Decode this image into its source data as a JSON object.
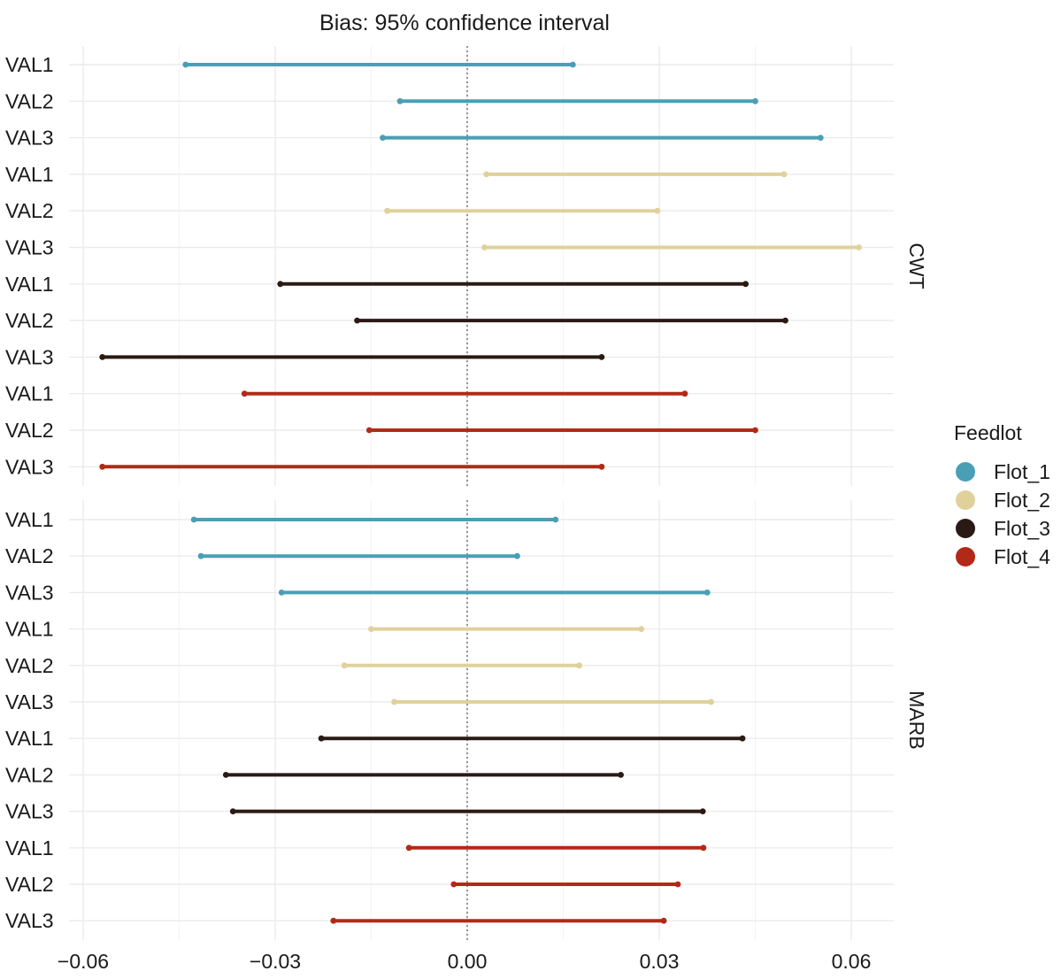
{
  "chart_data": {
    "type": "dumbbell",
    "title": "Bias: 95% confidence interval",
    "xlabel": "",
    "ylabel": "",
    "xlim": [
      -0.062,
      0.066
    ],
    "x_ticks": [
      -0.06,
      -0.03,
      0.0,
      0.03,
      0.06
    ],
    "x_tick_labels": [
      "−0.06",
      "−0.03",
      "0.00",
      "0.03",
      "0.06"
    ],
    "reference_line": 0,
    "grid": true,
    "legend": {
      "title": "Feedlot",
      "placement": "right",
      "entries": [
        {
          "name": "Flot_1",
          "color": "#4a9fb5"
        },
        {
          "name": "Flot_2",
          "color": "#e0d19b"
        },
        {
          "name": "Flot_3",
          "color": "#2b1a14"
        },
        {
          "name": "Flot_4",
          "color": "#b22a17"
        }
      ]
    },
    "panels": [
      {
        "strip": "CWT",
        "rows": [
          {
            "label": "VAL1",
            "group": "Flot_1",
            "low": -0.044,
            "high": 0.0165
          },
          {
            "label": "VAL2",
            "group": "Flot_1",
            "low": -0.0105,
            "high": 0.045
          },
          {
            "label": "VAL3",
            "group": "Flot_1",
            "low": -0.0132,
            "high": 0.0552
          },
          {
            "label": "VAL1",
            "group": "Flot_2",
            "low": 0.003,
            "high": 0.0495
          },
          {
            "label": "VAL2",
            "group": "Flot_2",
            "low": -0.0125,
            "high": 0.0297
          },
          {
            "label": "VAL3",
            "group": "Flot_2",
            "low": 0.0027,
            "high": 0.0612
          },
          {
            "label": "VAL1",
            "group": "Flot_3",
            "low": -0.0292,
            "high": 0.0435
          },
          {
            "label": "VAL2",
            "group": "Flot_3",
            "low": -0.0172,
            "high": 0.0497
          },
          {
            "label": "VAL3",
            "group": "Flot_3",
            "low": -0.057,
            "high": 0.021
          },
          {
            "label": "VAL1",
            "group": "Flot_4",
            "low": -0.0348,
            "high": 0.034
          },
          {
            "label": "VAL2",
            "group": "Flot_4",
            "low": -0.0153,
            "high": 0.045
          },
          {
            "label": "VAL3",
            "group": "Flot_4",
            "low": -0.057,
            "high": 0.021
          }
        ]
      },
      {
        "strip": "MARB",
        "rows": [
          {
            "label": "VAL1",
            "group": "Flot_1",
            "low": -0.0427,
            "high": 0.0138
          },
          {
            "label": "VAL2",
            "group": "Flot_1",
            "low": -0.0416,
            "high": 0.0078
          },
          {
            "label": "VAL3",
            "group": "Flot_1",
            "low": -0.029,
            "high": 0.0375
          },
          {
            "label": "VAL1",
            "group": "Flot_2",
            "low": -0.015,
            "high": 0.0272
          },
          {
            "label": "VAL2",
            "group": "Flot_2",
            "low": -0.0192,
            "high": 0.0175
          },
          {
            "label": "VAL3",
            "group": "Flot_2",
            "low": -0.0114,
            "high": 0.0381
          },
          {
            "label": "VAL1",
            "group": "Flot_3",
            "low": -0.0228,
            "high": 0.043
          },
          {
            "label": "VAL2",
            "group": "Flot_3",
            "low": -0.0377,
            "high": 0.024
          },
          {
            "label": "VAL3",
            "group": "Flot_3",
            "low": -0.0366,
            "high": 0.0368
          },
          {
            "label": "VAL1",
            "group": "Flot_4",
            "low": -0.0091,
            "high": 0.0369
          },
          {
            "label": "VAL2",
            "group": "Flot_4",
            "low": -0.0021,
            "high": 0.0329
          },
          {
            "label": "VAL3",
            "group": "Flot_4",
            "low": -0.0209,
            "high": 0.0307
          }
        ]
      }
    ]
  }
}
